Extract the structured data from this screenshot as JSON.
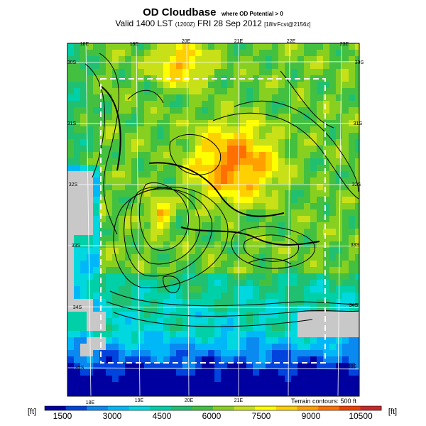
{
  "title": {
    "main": "OD Cloudbase",
    "qualifier": "where OD Potential > 0",
    "valid_text": "Valid 1400 LST",
    "utc_text": "(1200Z)",
    "date_text": "FRI 28 Sep 2012",
    "forecast_text": "[18hrFcst@2156z]"
  },
  "map": {
    "lon_labels_top": [
      "18E",
      "19E",
      "20E",
      "21E",
      "22E",
      "23E"
    ],
    "lon_labels_bottom": [
      "18E",
      "19E",
      "20E",
      "21E"
    ],
    "lat_labels_right": [
      "30S",
      "31S",
      "32S",
      "33S",
      "34S",
      "35S"
    ],
    "lat_labels_left": [
      "30S",
      "31S",
      "32S",
      "33S",
      "34S",
      "35S"
    ],
    "terrain_note": "Terrain contours: 500 ft"
  },
  "colorbar": {
    "unit_left": "[ft]",
    "unit_right": "[ft]",
    "tick_labels": [
      "1500",
      "3000",
      "4500",
      "6000",
      "7500",
      "9000",
      "10500"
    ],
    "colors": [
      "#0000a0",
      "#0044dd",
      "#0a8af0",
      "#00b8f8",
      "#00d8e0",
      "#00d0a8",
      "#20c070",
      "#44c040",
      "#88d020",
      "#c8e018",
      "#ffff00",
      "#ffd000",
      "#ffa000",
      "#ff7000",
      "#f04000",
      "#c82828"
    ]
  },
  "colors": {
    "ocean": "#c8c8c8",
    "contour": "#000000",
    "gridline": "#ffffff"
  }
}
